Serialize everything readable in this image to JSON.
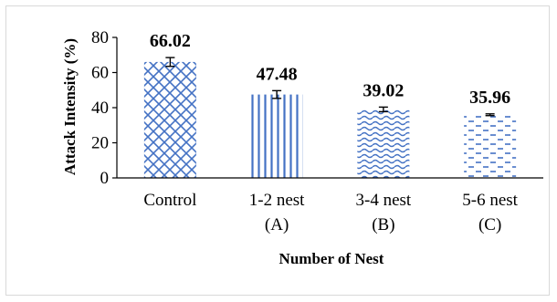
{
  "chart_data": {
    "type": "bar",
    "title": "",
    "xlabel": "Number of Nest",
    "ylabel": "Attack Intensity (%)",
    "ylim": [
      0,
      80
    ],
    "yticks": [
      0,
      20,
      40,
      60,
      80
    ],
    "categories": [
      [
        "Control"
      ],
      [
        "1-2 nest",
        "(A)"
      ],
      [
        "3-4 nest",
        "(B)"
      ],
      [
        "5-6 nest",
        "(C)"
      ]
    ],
    "values": [
      66.02,
      47.48,
      39.02,
      35.96
    ],
    "value_labels": [
      "66.02",
      "47.48",
      "39.02",
      "35.96"
    ],
    "error": [
      2.5,
      2.2,
      1.3,
      0.5
    ],
    "patterns": [
      "diamond-lattice",
      "vertical-lines",
      "waves",
      "dashes"
    ],
    "bar_color": "#4472c4",
    "grid": false,
    "legend": "none"
  }
}
